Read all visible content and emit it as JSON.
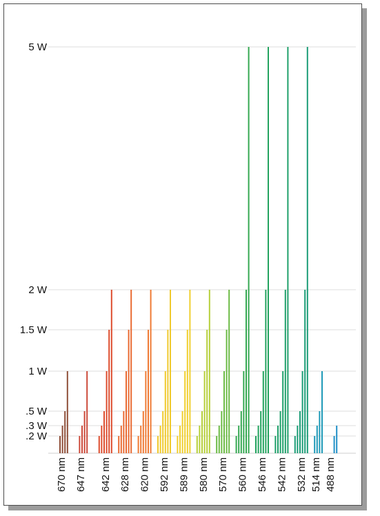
{
  "chart_data": {
    "type": "bar",
    "title": "",
    "xlabel": "",
    "ylabel": "",
    "ylim": [
      0,
      5.2
    ],
    "grid": true,
    "y_ticks": [
      {
        "value": 5,
        "label": "5 W"
      },
      {
        "value": 2,
        "label": "2 W"
      },
      {
        "value": 1.5,
        "label": "1.5 W"
      },
      {
        "value": 1,
        "label": "1 W"
      },
      {
        "value": 0.5,
        "label": ".5 W"
      },
      {
        "value": 0.3,
        "label": ".3 W"
      },
      {
        "value": 0.2,
        "label": ".2 W"
      }
    ],
    "categories": [
      "670 nm",
      "647 nm",
      "642 nm",
      "628 nm",
      "620 nm",
      "592 nm",
      "589 nm",
      "580 nm",
      "570 nm",
      "560 nm",
      "546 nm",
      "542 nm",
      "532 nm",
      "514 nm",
      "488 nm"
    ],
    "groups": [
      {
        "category": "670 nm",
        "color": "#8e4e38",
        "values": [
          0.2,
          0.3,
          0.5,
          1
        ]
      },
      {
        "category": "647 nm",
        "color": "#cc4a3a",
        "values": [
          0.2,
          0.3,
          0.5,
          1
        ]
      },
      {
        "category": "642 nm",
        "color": "#dd4d2e",
        "values": [
          0.2,
          0.3,
          0.5,
          1,
          1.5,
          2
        ]
      },
      {
        "category": "628 nm",
        "color": "#e96a32",
        "values": [
          0.2,
          0.3,
          0.5,
          1,
          1.5,
          2
        ]
      },
      {
        "category": "620 nm",
        "color": "#ef7a34",
        "values": [
          0.2,
          0.3,
          0.5,
          1,
          1.5,
          2
        ]
      },
      {
        "category": "592 nm",
        "color": "#efc92c",
        "values": [
          0.2,
          0.3,
          0.5,
          1,
          1.5,
          2
        ]
      },
      {
        "category": "589 nm",
        "color": "#f0cf2e",
        "values": [
          0.2,
          0.3,
          0.5,
          1,
          1.5,
          2
        ]
      },
      {
        "category": "580 nm",
        "color": "#b6cf3a",
        "values": [
          0.2,
          0.3,
          0.5,
          1,
          1.5,
          2
        ]
      },
      {
        "category": "570 nm",
        "color": "#6cbb45",
        "values": [
          0.2,
          0.3,
          0.5,
          1,
          1.5,
          2
        ]
      },
      {
        "category": "560 nm",
        "color": "#34a851",
        "values": [
          0.2,
          0.3,
          0.5,
          1,
          2,
          5
        ]
      },
      {
        "category": "546 nm",
        "color": "#22a35e",
        "values": [
          0.2,
          0.3,
          0.5,
          1,
          2,
          5
        ]
      },
      {
        "category": "542 nm",
        "color": "#1fa06a",
        "values": [
          0.2,
          0.3,
          0.5,
          1,
          2,
          5
        ]
      },
      {
        "category": "532 nm",
        "color": "#1b9c76",
        "values": [
          0.2,
          0.3,
          0.5,
          1,
          2,
          5
        ]
      },
      {
        "category": "514 nm",
        "color": "#1f9ab8",
        "values": [
          0.2,
          0.3,
          0.5,
          1
        ]
      },
      {
        "category": "488 nm",
        "color": "#1f8fc7",
        "values": [
          0.2,
          0.3
        ]
      }
    ]
  }
}
